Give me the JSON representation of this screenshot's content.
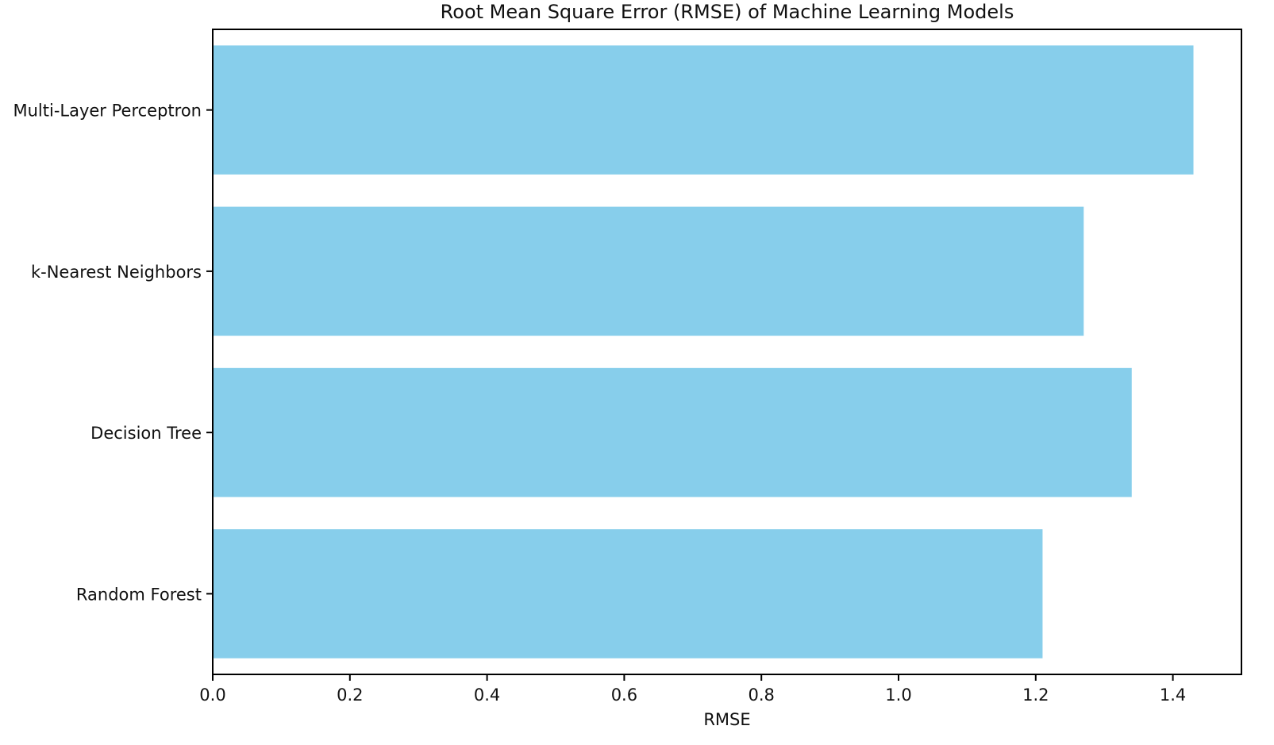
{
  "chart_data": {
    "type": "bar",
    "orientation": "horizontal",
    "title": "Root Mean Square Error (RMSE) of Machine Learning Models",
    "xlabel": "RMSE",
    "ylabel": "",
    "categories": [
      "Random Forest",
      "Decision Tree",
      "k-Nearest Neighbors",
      "Multi-Layer Perceptron"
    ],
    "values": [
      1.21,
      1.34,
      1.27,
      1.43
    ],
    "xlim": [
      0,
      1.5
    ],
    "xticks": [
      "0.0",
      "0.2",
      "0.4",
      "0.6",
      "0.8",
      "1.0",
      "1.2",
      "1.4"
    ],
    "bar_color": "#87CEEB",
    "grid": false,
    "legend": "none"
  }
}
